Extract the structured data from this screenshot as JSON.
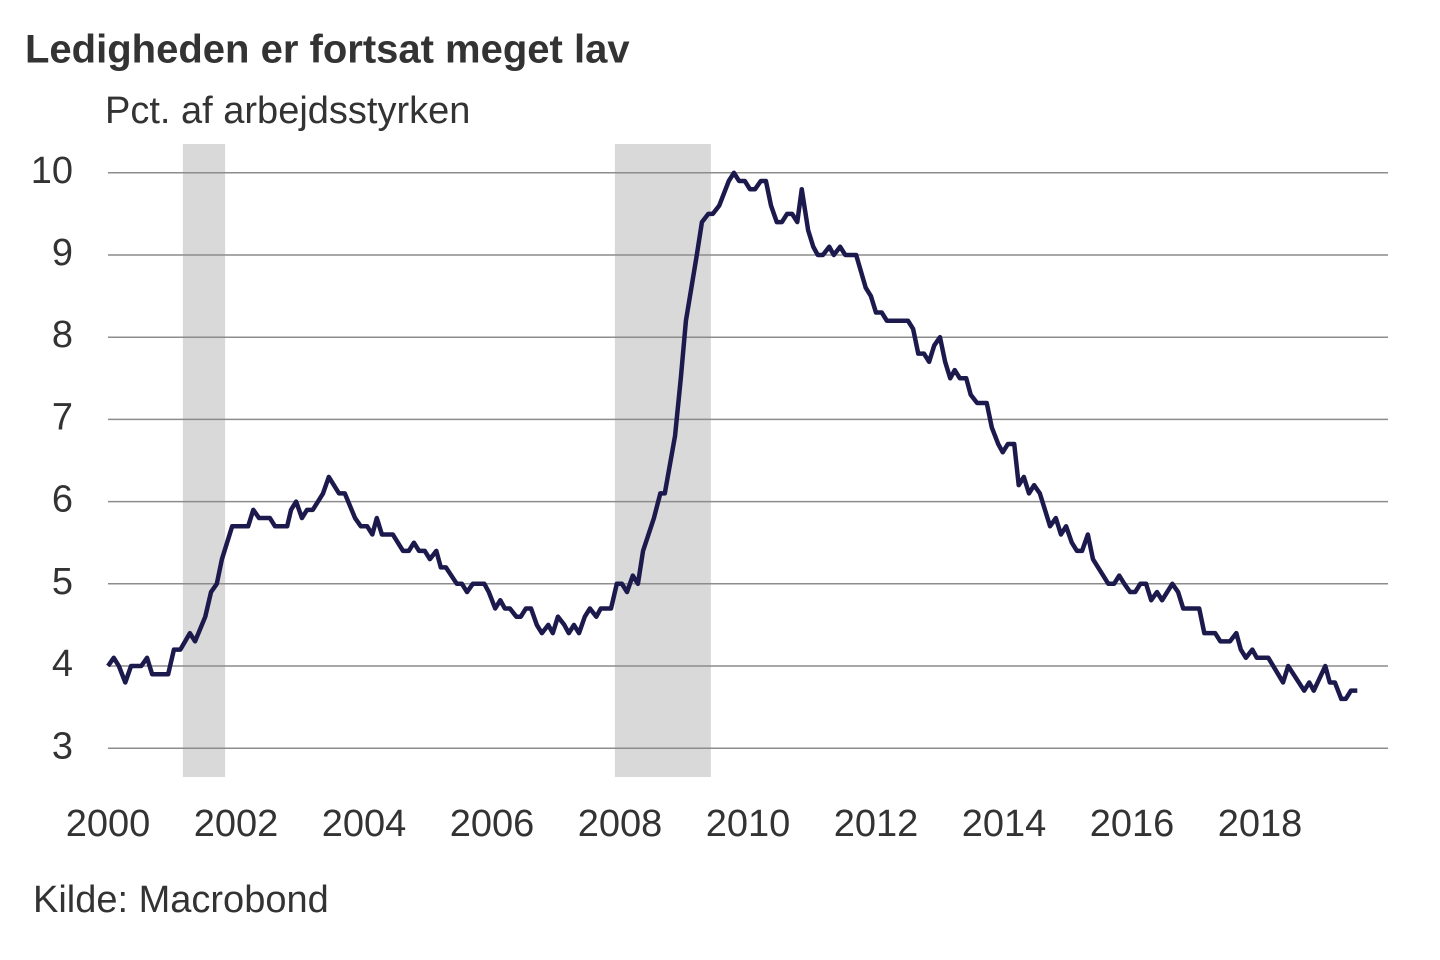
{
  "chart_data": {
    "type": "line",
    "title": "Ledigheden er fortsat meget lav",
    "subtitle": "Pct. af arbejdsstyrken",
    "source": "Kilde: Macrobond",
    "color": "#1c1a4d",
    "shade_color": "#d9d9d9",
    "shaded_periods": [
      [
        2001.17,
        2001.83
      ],
      [
        2007.92,
        2009.42
      ]
    ],
    "xlim": [
      2000,
      2020
    ],
    "xticks": [
      2000,
      2002,
      2004,
      2006,
      2008,
      2010,
      2012,
      2014,
      2016,
      2018
    ],
    "ylim": [
      2.65,
      10.35
    ],
    "yticks": [
      3,
      4,
      5,
      6,
      7,
      8,
      9,
      10
    ],
    "grid": true,
    "x": [
      2000.0,
      2000.09,
      2000.17,
      2000.27,
      2000.36,
      2000.52,
      2000.61,
      2000.69,
      2000.94,
      2001.03,
      2001.13,
      2001.28,
      2001.36,
      2001.52,
      2001.61,
      2001.7,
      2001.78,
      2001.94,
      2002.19,
      2002.27,
      2002.36,
      2002.53,
      2002.61,
      2002.8,
      2002.86,
      2002.94,
      2003.03,
      2003.11,
      2003.2,
      2003.36,
      2003.45,
      2003.61,
      2003.7,
      2003.86,
      2003.95,
      2004.05,
      2004.13,
      2004.2,
      2004.28,
      2004.45,
      2004.61,
      2004.7,
      2004.78,
      2004.86,
      2004.95,
      2005.03,
      2005.13,
      2005.2,
      2005.28,
      2005.45,
      2005.53,
      2005.61,
      2005.7,
      2005.88,
      2005.95,
      2006.05,
      2006.13,
      2006.2,
      2006.28,
      2006.38,
      2006.45,
      2006.53,
      2006.61,
      2006.7,
      2006.78,
      2006.88,
      2006.95,
      2007.03,
      2007.13,
      2007.2,
      2007.28,
      2007.36,
      2007.45,
      2007.53,
      2007.63,
      2007.7,
      2007.86,
      2007.95,
      2008.03,
      2008.11,
      2008.2,
      2008.28,
      2008.36,
      2008.53,
      2008.63,
      2008.7,
      2008.86,
      2008.95,
      2009.03,
      2009.2,
      2009.28,
      2009.38,
      2009.45,
      2009.55,
      2009.7,
      2009.78,
      2009.86,
      2009.95,
      2010.03,
      2010.11,
      2010.2,
      2010.28,
      2010.36,
      2010.45,
      2010.53,
      2010.61,
      2010.69,
      2010.77,
      2010.84,
      2010.94,
      2011.02,
      2011.09,
      2011.17,
      2011.27,
      2011.34,
      2011.44,
      2011.52,
      2011.69,
      2011.84,
      2011.92,
      2012.0,
      2012.09,
      2012.17,
      2012.5,
      2012.58,
      2012.66,
      2012.75,
      2012.83,
      2012.91,
      2013.0,
      2013.08,
      2013.16,
      2013.23,
      2013.31,
      2013.41,
      2013.48,
      2013.58,
      2013.73,
      2013.81,
      2013.91,
      2013.98,
      2014.06,
      2014.16,
      2014.23,
      2014.31,
      2014.39,
      2014.47,
      2014.56,
      2014.64,
      2014.72,
      2014.81,
      2014.89,
      2014.97,
      2015.06,
      2015.14,
      2015.22,
      2015.31,
      2015.39,
      2015.55,
      2015.63,
      2015.72,
      2015.8,
      2015.88,
      2015.97,
      2016.05,
      2016.13,
      2016.22,
      2016.3,
      2016.39,
      2016.47,
      2016.63,
      2016.72,
      2016.8,
      2017.05,
      2017.13,
      2017.3,
      2017.38,
      2017.53,
      2017.63,
      2017.7,
      2017.78,
      2017.88,
      2017.95,
      2018.13,
      2018.36,
      2018.44,
      2018.69,
      2018.77,
      2018.84,
      2019.02,
      2019.09,
      2019.17,
      2019.27,
      2019.34,
      2019.42,
      2019.52
    ],
    "values": [
      4.0,
      4.1,
      4.0,
      3.8,
      4.0,
      4.0,
      4.1,
      3.9,
      3.9,
      4.2,
      4.2,
      4.4,
      4.3,
      4.6,
      4.9,
      5.0,
      5.3,
      5.7,
      5.7,
      5.9,
      5.8,
      5.8,
      5.7,
      5.7,
      5.9,
      6.0,
      5.8,
      5.9,
      5.9,
      6.1,
      6.3,
      6.1,
      6.1,
      5.8,
      5.7,
      5.7,
      5.6,
      5.8,
      5.6,
      5.6,
      5.4,
      5.4,
      5.5,
      5.4,
      5.4,
      5.3,
      5.4,
      5.2,
      5.2,
      5.0,
      5.0,
      4.9,
      5.0,
      5.0,
      4.9,
      4.7,
      4.8,
      4.7,
      4.7,
      4.6,
      4.6,
      4.7,
      4.7,
      4.5,
      4.4,
      4.5,
      4.4,
      4.6,
      4.5,
      4.4,
      4.5,
      4.4,
      4.6,
      4.7,
      4.6,
      4.7,
      4.7,
      5.0,
      5.0,
      4.9,
      5.1,
      5.0,
      5.4,
      5.8,
      6.1,
      6.1,
      6.8,
      7.5,
      8.2,
      9.0,
      9.4,
      9.5,
      9.5,
      9.6,
      9.9,
      10.0,
      9.9,
      9.9,
      9.8,
      9.8,
      9.9,
      9.9,
      9.6,
      9.4,
      9.4,
      9.5,
      9.5,
      9.4,
      9.8,
      9.3,
      9.1,
      9.0,
      9.0,
      9.1,
      9.0,
      9.1,
      9.0,
      9.0,
      8.6,
      8.5,
      8.3,
      8.3,
      8.2,
      8.2,
      8.1,
      7.8,
      7.8,
      7.7,
      7.9,
      8.0,
      7.7,
      7.5,
      7.6,
      7.5,
      7.5,
      7.3,
      7.2,
      7.2,
      6.9,
      6.7,
      6.6,
      6.7,
      6.7,
      6.2,
      6.3,
      6.1,
      6.2,
      6.1,
      5.9,
      5.7,
      5.8,
      5.6,
      5.7,
      5.5,
      5.4,
      5.4,
      5.6,
      5.3,
      5.1,
      5.0,
      5.0,
      5.1,
      5.0,
      4.9,
      4.9,
      5.0,
      5.0,
      4.8,
      4.9,
      4.8,
      5.0,
      4.9,
      4.7,
      4.7,
      4.4,
      4.4,
      4.3,
      4.3,
      4.4,
      4.2,
      4.1,
      4.2,
      4.1,
      4.1,
      3.8,
      4.0,
      3.7,
      3.8,
      3.7,
      4.0,
      3.8,
      3.8,
      3.6,
      3.6,
      3.7,
      3.7
    ]
  }
}
